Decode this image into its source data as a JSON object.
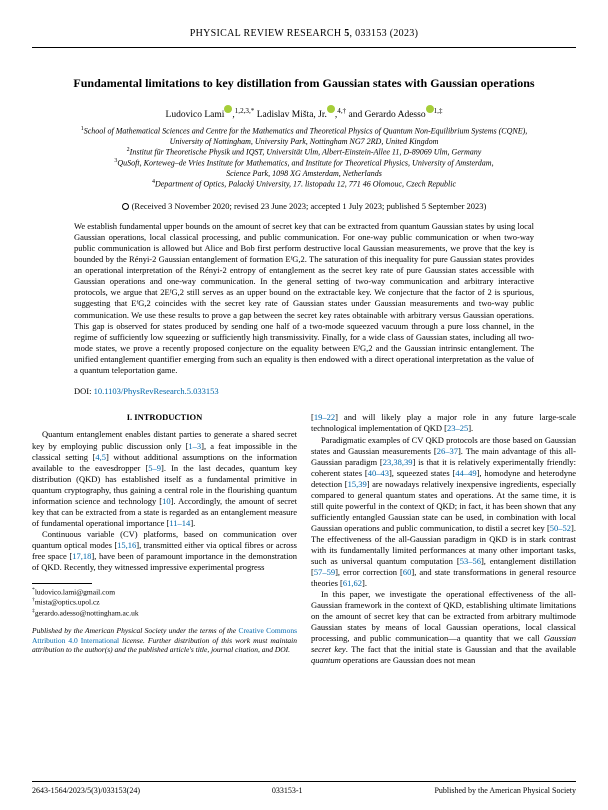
{
  "journal": {
    "name": "PHYSICAL REVIEW RESEARCH",
    "vol": "5",
    "article": "033153 (2023)"
  },
  "title": "Fundamental limitations to key distillation from Gaussian states with Gaussian operations",
  "authors": {
    "a1_name": "Ludovico Lami",
    "a1_aff": "1,2,3,*",
    "a2_name": "Ladislav Mišta, Jr.",
    "a2_aff": "4,†",
    "a3_name": "Gerardo Adesso",
    "a3_aff": "1,‡"
  },
  "affiliations": {
    "l1": "School of Mathematical Sciences and Centre for the Mathematics and Theoretical Physics of Quantum Non-Equilibrium Systems (CQNE),",
    "l2": "University of Nottingham, University Park, Nottingham NG7 2RD, United Kingdom",
    "l3": "Institut für Theoretische Physik und IQST, Universität Ulm, Albert-Einstein-Allee 11, D-89069 Ulm, Germany",
    "l4": "QuSoft, Korteweg–de Vries Institute for Mathematics, and Institute for Theoretical Physics, University of Amsterdam,",
    "l5": "Science Park, 1098 XG Amsterdam, Netherlands",
    "l6": "Department of Optics, Palacký University, 17. listopadu 12, 771 46 Olomouc, Czech Republic"
  },
  "dates": "(Received 3 November 2020; revised 23 June 2023; accepted 1 July 2023; published 5 September 2023)",
  "abstract": "We establish fundamental upper bounds on the amount of secret key that can be extracted from quantum Gaussian states by using local Gaussian operations, local classical processing, and public communication. For one-way public communication or when two-way public communication is allowed but Alice and Bob first perform destructive local Gaussian measurements, we prove that the key is bounded by the Rényi-2 Gaussian entanglement of formation EᶠG,2. The saturation of this inequality for pure Gaussian states provides an operational interpretation of the Rényi-2 entropy of entanglement as the secret key rate of pure Gaussian states accessible with Gaussian operations and one-way communication. In the general setting of two-way communication and arbitrary interactive protocols, we argue that 2EᶠG,2 still serves as an upper bound on the extractable key. We conjecture that the factor of 2 is spurious, suggesting that EᶠG,2 coincides with the secret key rate of Gaussian states under Gaussian measurements and two-way public communication. We use these results to prove a gap between the secret key rates obtainable with arbitrary versus Gaussian operations. This gap is observed for states produced by sending one half of a two-mode squeezed vacuum through a pure loss channel, in the regime of sufficiently low squeezing or sufficiently high transmissivity. Finally, for a wide class of Gaussian states, including all two-mode states, we prove a recently proposed conjecture on the equality between EᶠG,2 and the Gaussian intrinsic entanglement. The unified entanglement quantifier emerging from such an equality is then endowed with a direct operational interpretation as the value of a quantum teleportation game.",
  "doi_label": "DOI:",
  "doi_link": "10.1103/PhysRevResearch.5.033153",
  "section1_heading": "I. INTRODUCTION",
  "col1_p1a": "Quantum entanglement enables distant parties to generate a shared secret key by employing public discussion only [",
  "col1_p1_r1": "1–3",
  "col1_p1b": "], a feat impossible in the classical setting [",
  "col1_p1_r2": "4,5",
  "col1_p1c": "] without additional assumptions on the information available to the eavesdropper [",
  "col1_p1_r3": "5–9",
  "col1_p1d": "]. In the last decades, quantum key distribution (QKD) has established itself as a fundamental primitive in quantum cryptography, thus gaining a central role in the flourishing quantum information science and technology [",
  "col1_p1_r4": "10",
  "col1_p1e": "]. Accordingly, the amount of secret key that can be extracted from a state is regarded as an entanglement measure of fundamental operational importance [",
  "col1_p1_r5": "11–14",
  "col1_p1f": "].",
  "col1_p2a": "Continuous variable (CV) platforms, based on communication over quantum optical modes [",
  "col1_p2_r1": "15,16",
  "col1_p2b": "], transmitted either via optical fibres or across free space [",
  "col1_p2_r2": "17,18",
  "col1_p2c": "], have been of paramount importance in the demonstration of QKD. Recently, they witnessed impressive experimental progress",
  "col2_p1a": "[",
  "col2_p1_r1": "19–22",
  "col2_p1b": "] and will likely play a major role in any future large-scale technological implementation of QKD [",
  "col2_p1_r2": "23–25",
  "col2_p1c": "].",
  "col2_p2a": "Paradigmatic examples of CV QKD protocols are those based on Gaussian states and Gaussian measurements [",
  "col2_p2_r1": "26–37",
  "col2_p2b": "]. The main advantage of this all-Gaussian paradigm [",
  "col2_p2_r2": "23,38,39",
  "col2_p2c": "] is that it is relatively experimentally friendly: coherent states [",
  "col2_p2_r3": "40–43",
  "col2_p2d": "], squeezed states [",
  "col2_p2_r4": "44–49",
  "col2_p2e": "], homodyne and heterodyne detection [",
  "col2_p2_r5": "15,39",
  "col2_p2f": "] are nowadays relatively inexpensive ingredients, especially compared to general quantum states and operations. At the same time, it is still quite powerful in the context of QKD; in fact, it has been shown that any sufficiently entangled Gaussian state can be used, in combination with local Gaussian operations and public communication, to distil a secret key [",
  "col2_p2_r6": "50–52",
  "col2_p2g": "]. The effectiveness of the all-Gaussian paradigm in QKD is in stark contrast with its fundamentally limited performances at many other important tasks, such as universal quantum computation [",
  "col2_p2_r7": "53–56",
  "col2_p2h": "], entanglement distillation [",
  "col2_p2_r8": "57–59",
  "col2_p2i": "], error correction [",
  "col2_p2_r9": "60",
  "col2_p2j": "], and state transformations in general resource theories [",
  "col2_p2_r10": "61,62",
  "col2_p2k": "].",
  "col2_p3a": "In this paper, we investigate the operational effectiveness of the all-Gaussian framework in the context of QKD, establishing ultimate limitations on the amount of secret key that can be extracted from arbitrary multimode Gaussian states by means of local Gaussian operations, local classical processing, and public communication—a quantity that we call ",
  "col2_p3_em": "Gaussian secret key",
  "col2_p3b": ". The fact that the initial state is Gaussian and that the available ",
  "col2_p3_em2": "quantum",
  "col2_p3c": " operations are Gaussian does not mean",
  "footnotes": {
    "f1": "ludovico.lami@gmail.com",
    "f2": "mista@optics.upol.cz",
    "f3": "gerardo.adesso@nottingham.ac.uk"
  },
  "license_a": "Published by the American Physical Society under the terms of the ",
  "license_link": "Creative Commons Attribution 4.0 International",
  "license_b": " license. Further distribution of this work must maintain attribution to the author(s) and the published article's title, journal citation, and DOI.",
  "footer": {
    "left": "2643-1564/2023/5(3)/033153(24)",
    "center": "033153-1",
    "right": "Published by the American Physical Society"
  }
}
